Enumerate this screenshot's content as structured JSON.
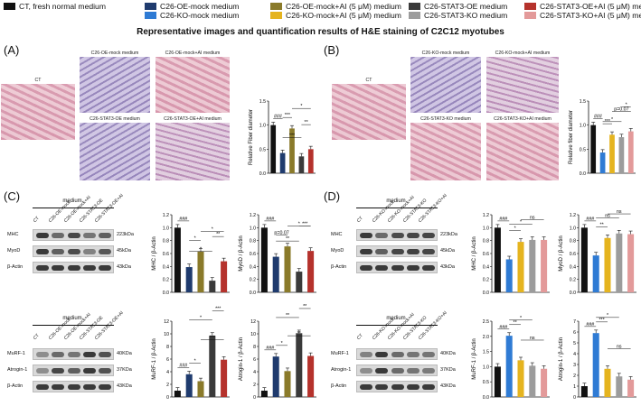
{
  "legend": [
    {
      "label": "CT, fresh normal medium",
      "color": "#111111"
    },
    {
      "label": "C26-OE-mock medium",
      "color": "#1f3b6e"
    },
    {
      "label": "C26-OE-mock+AI (5 μM) medium",
      "color": "#8a7a2a"
    },
    {
      "label": "C26-STAT3-OE medium",
      "color": "#3a3a3a"
    },
    {
      "label": "C26-STAT3-OE+AI (5 μM) medium",
      "color": "#b5322c"
    },
    {
      "label": "C26-KO-mock medium",
      "color": "#2f7bd4"
    },
    {
      "label": "C26-KO-mock+AI (5 μM) medium",
      "color": "#e5b41f"
    },
    {
      "label": "C26-STAT3-KO medium",
      "color": "#9c9c9c"
    },
    {
      "label": "C26-STAT3-KO+AI (5 μM) medium",
      "color": "#e39a9a"
    }
  ],
  "figure_title": "Representative images and quantification results of H&E staining of C2C12 myotubes",
  "panels": {
    "A": "(A)",
    "B": "(B)",
    "C": "(C)",
    "D": "(D)"
  },
  "micrographs": {
    "A": [
      "CT",
      "C26-OE-mock medium",
      "C26-OE-mock+AI medium",
      "C26-STAT3-OE medium",
      "C26-STAT3-OE+AI medium"
    ],
    "B": [
      "CT",
      "C26-KO-mock medium",
      "C26-KO-mock+AI medium",
      "C26-STAT3-KO medium",
      "C26-STAT3-KO+AI medium"
    ]
  },
  "blots": {
    "C_top": {
      "header": "medium",
      "lanes": [
        "CT",
        "C26-OE-mock",
        "C26-OE-mock+AI",
        "C26-STAT3-OE",
        "C26-STAT3-OE+AI"
      ],
      "rows": [
        {
          "name": "MHC",
          "kda": "223kDa"
        },
        {
          "name": "MyoD",
          "kda": "45kDa"
        },
        {
          "name": "β-Actin",
          "kda": "43kDa"
        }
      ]
    },
    "C_bot": {
      "header": "medium",
      "lanes": [
        "CT",
        "C26-OE-mock",
        "C26-OE-mock+AI",
        "C26-STAT3-OE",
        "C26-STAT3-OE+AI"
      ],
      "rows": [
        {
          "name": "MuRF-1",
          "kda": "40KDa"
        },
        {
          "name": "Atrogin-1",
          "kda": "37KDa"
        },
        {
          "name": "β-Actin",
          "kda": "43KDa"
        }
      ]
    },
    "D_top": {
      "header": "medium",
      "lanes": [
        "CT",
        "C26-KO-mock",
        "C26-KO-mock+AI",
        "C26-STAT3-KO",
        "C26-STAT3-KO+AI"
      ],
      "rows": [
        {
          "name": "MHC",
          "kda": "223kDa"
        },
        {
          "name": "MyoD",
          "kda": "45kDa"
        },
        {
          "name": "β-Actin",
          "kda": "43kDa"
        }
      ]
    },
    "D_bot": {
      "header": "medium",
      "lanes": [
        "CT",
        "C26-KO-mock",
        "C26-KO-mock+AI",
        "C26-STAT3-KO",
        "C26-STAT3-KO+AI"
      ],
      "rows": [
        {
          "name": "MuRF-1",
          "kda": "40KDa"
        },
        {
          "name": "Atrogin-1",
          "kda": "37KDa"
        },
        {
          "name": "β-Actin",
          "kda": "43KDa"
        }
      ]
    }
  },
  "chart_data": [
    {
      "id": "A_fiber",
      "type": "bar",
      "ylabel": "Relative Fiber diameter",
      "ylim": [
        0,
        1.5
      ],
      "yticks": [
        0.0,
        0.5,
        1.0,
        1.5
      ],
      "values": [
        1.0,
        0.42,
        0.93,
        0.35,
        0.5
      ],
      "colors": [
        "#111111",
        "#1f3b6e",
        "#8a7a2a",
        "#3a3a3a",
        "#b5322c"
      ],
      "annotations": [
        "###",
        "***",
        "***",
        "*",
        "**"
      ]
    },
    {
      "id": "B_fiber",
      "type": "bar",
      "ylabel": "Relative fiber diameter",
      "ylim": [
        0,
        1.5
      ],
      "yticks": [
        0.0,
        0.5,
        1.0,
        1.5
      ],
      "values": [
        1.0,
        0.43,
        0.8,
        0.75,
        0.87
      ],
      "colors": [
        "#111111",
        "#2f7bd4",
        "#e5b41f",
        "#9c9c9c",
        "#e39a9a"
      ],
      "annotations": [
        "###",
        "***",
        "*",
        "p=0.07",
        "*"
      ]
    },
    {
      "id": "C_MHC",
      "type": "bar",
      "ylabel": "MHC / β-Actin",
      "ylim": [
        0,
        1.2
      ],
      "yticks": [
        0.0,
        0.2,
        0.4,
        0.6,
        0.8,
        1.0,
        1.2
      ],
      "values": [
        1.0,
        0.39,
        0.63,
        0.18,
        0.48
      ],
      "colors": [
        "#111111",
        "#1f3b6e",
        "#8a7a2a",
        "#3a3a3a",
        "#b5322c"
      ],
      "annotations": [
        "###",
        "*",
        "*",
        "*",
        "**"
      ]
    },
    {
      "id": "C_MyoD",
      "type": "bar",
      "ylabel": "MyoD / β-Actin",
      "ylim": [
        0,
        1.2
      ],
      "yticks": [
        0.0,
        0.2,
        0.4,
        0.6,
        0.8,
        1.0,
        1.2
      ],
      "values": [
        1.0,
        0.55,
        0.71,
        0.32,
        0.64
      ],
      "colors": [
        "#111111",
        "#1f3b6e",
        "#8a7a2a",
        "#3a3a3a",
        "#b5322c"
      ],
      "annotations": [
        "###",
        "p=0.07",
        "**",
        "*",
        "***"
      ]
    },
    {
      "id": "D_MHC",
      "type": "bar",
      "ylabel": "MHC / β-Actin",
      "ylim": [
        0,
        1.2
      ],
      "yticks": [
        0.0,
        0.2,
        0.4,
        0.6,
        0.8,
        1.0,
        1.2
      ],
      "values": [
        1.0,
        0.51,
        0.78,
        0.81,
        0.81
      ],
      "colors": [
        "#111111",
        "#2f7bd4",
        "#e5b41f",
        "#9c9c9c",
        "#e39a9a"
      ],
      "annotations": [
        "###",
        "*",
        "*",
        "ns"
      ]
    },
    {
      "id": "D_MyoD",
      "type": "bar",
      "ylabel": "MyoD / β-Actin",
      "ylim": [
        0,
        1.2
      ],
      "yticks": [
        0.0,
        0.2,
        0.4,
        0.6,
        0.8,
        1.0,
        1.2
      ],
      "values": [
        1.0,
        0.57,
        0.84,
        0.91,
        0.9
      ],
      "colors": [
        "#111111",
        "#2f7bd4",
        "#e5b41f",
        "#9c9c9c",
        "#e39a9a"
      ],
      "annotations": [
        "###",
        "**",
        "ns",
        "ns"
      ]
    },
    {
      "id": "C_MuRF",
      "type": "bar",
      "ylabel": "MuRF-1 / β-Actin",
      "ylim": [
        0,
        12
      ],
      "yticks": [
        0,
        2,
        4,
        6,
        8,
        10,
        12
      ],
      "values": [
        1.0,
        3.6,
        2.5,
        9.7,
        5.9
      ],
      "colors": [
        "#111111",
        "#1f3b6e",
        "#8a7a2a",
        "#3a3a3a",
        "#b5322c"
      ],
      "annotations": [
        "###",
        "*",
        "*",
        "***",
        "***"
      ]
    },
    {
      "id": "C_Atrogin",
      "type": "bar",
      "ylabel": "Atrogin-1 / β-Actin",
      "ylim": [
        0,
        12
      ],
      "yticks": [
        0,
        2,
        4,
        6,
        8,
        10,
        12
      ],
      "values": [
        1.0,
        6.4,
        4.1,
        10.1,
        6.5
      ],
      "colors": [
        "#111111",
        "#1f3b6e",
        "#8a7a2a",
        "#3a3a3a",
        "#b5322c"
      ],
      "annotations": [
        "###",
        "*",
        "**",
        "**",
        "**"
      ]
    },
    {
      "id": "D_MuRF",
      "type": "bar",
      "ylabel": "MuRF-1 / β-Actin",
      "ylim": [
        0,
        2.5
      ],
      "yticks": [
        0.0,
        0.5,
        1.0,
        1.5,
        2.0,
        2.5
      ],
      "values": [
        1.0,
        2.02,
        1.21,
        1.03,
        0.93
      ],
      "colors": [
        "#111111",
        "#2f7bd4",
        "#e5b41f",
        "#9c9c9c",
        "#e39a9a"
      ],
      "annotations": [
        "###",
        "**",
        "*",
        "ns"
      ]
    },
    {
      "id": "D_Atrogin",
      "type": "bar",
      "ylabel": "Atrogin-1 / β-Actin",
      "ylim": [
        0,
        7
      ],
      "yticks": [
        0,
        1,
        2,
        3,
        4,
        5,
        6,
        7
      ],
      "values": [
        1.0,
        5.9,
        2.6,
        1.9,
        1.6
      ],
      "colors": [
        "#111111",
        "#2f7bd4",
        "#e5b41f",
        "#9c9c9c",
        "#e39a9a"
      ],
      "annotations": [
        "###",
        "***",
        "*",
        "ns"
      ]
    }
  ]
}
